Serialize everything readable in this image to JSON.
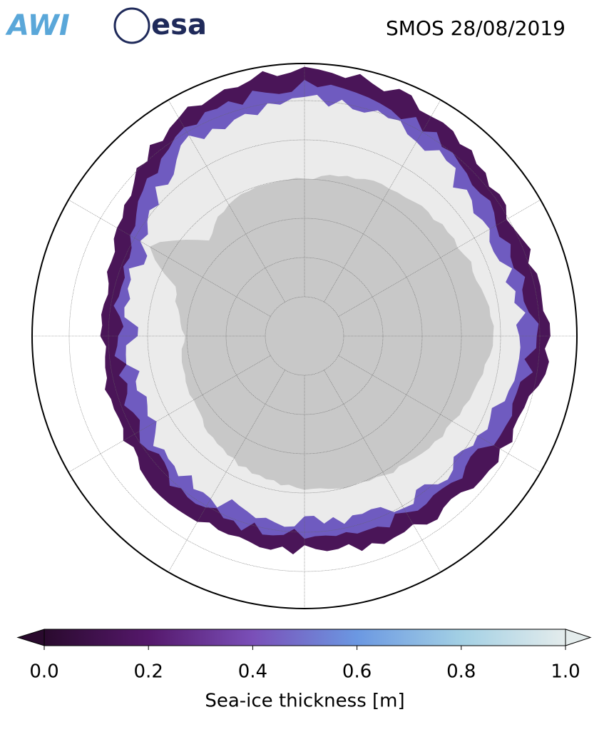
{
  "header": {
    "logos": [
      "AWI",
      "esa"
    ],
    "title": "SMOS 28/08/2019"
  },
  "colorbar": {
    "label": "Sea-ice thickness [m]",
    "lim": [
      0,
      1
    ],
    "ticks": [
      {
        "value": 0,
        "label": "0.0"
      },
      {
        "value": 0.2,
        "label": "0.2"
      },
      {
        "value": 0.4,
        "label": "0.4"
      },
      {
        "value": 0.6,
        "label": "0.6"
      },
      {
        "value": 0.8,
        "label": "0.8"
      },
      {
        "value": 1,
        "label": "1.0"
      }
    ],
    "colors": [
      "#2a0a2e",
      "#55186b",
      "#7a4fb8",
      "#6b98e2",
      "#a3d0e4",
      "#e4ecec"
    ]
  }
}
